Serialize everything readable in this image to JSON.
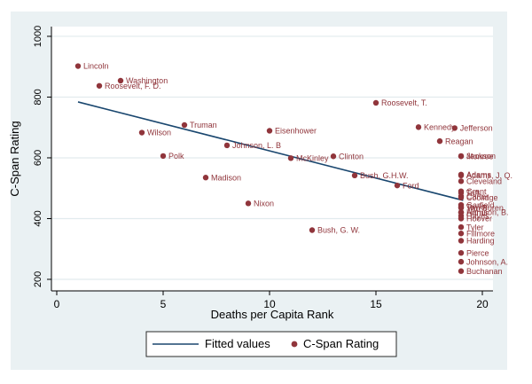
{
  "chart_data": {
    "type": "scatter",
    "title": "",
    "xlabel": "Deaths per Capita Rank",
    "ylabel": "C-Span Rating",
    "x_ticks": [
      0,
      5,
      10,
      15,
      20
    ],
    "y_ticks": [
      200,
      400,
      600,
      800,
      1000
    ],
    "xlim": [
      -0.25,
      20.5
    ],
    "ylim": [
      162,
      1032
    ],
    "grid": "horizontal-only",
    "legend": {
      "position": "bottom-center",
      "fitted_label": "Fitted values",
      "rating_label": "C-Span Rating"
    },
    "fitted_line": {
      "x1": 1.0,
      "y1": 784,
      "x2": 19.1,
      "y2": 460
    },
    "points": [
      {
        "label": "Lincoln",
        "x": 1,
        "y": 902
      },
      {
        "label": "Roosevelt, F. D.",
        "x": 2,
        "y": 837
      },
      {
        "label": "Washington",
        "x": 3,
        "y": 854
      },
      {
        "label": "Wilson",
        "x": 4,
        "y": 683
      },
      {
        "label": "Polk",
        "x": 5,
        "y": 606
      },
      {
        "label": "Truman",
        "x": 6,
        "y": 708
      },
      {
        "label": "Madison",
        "x": 7,
        "y": 535
      },
      {
        "label": "Johnson, L. B",
        "x": 8,
        "y": 641
      },
      {
        "label": "Nixon",
        "x": 9,
        "y": 450
      },
      {
        "label": "Eisenhower",
        "x": 10,
        "y": 689
      },
      {
        "label": "McKinley",
        "x": 11,
        "y": 599
      },
      {
        "label": "Bush, G. W.",
        "x": 12,
        "y": 362
      },
      {
        "label": "Clinton",
        "x": 13,
        "y": 605
      },
      {
        "label": "Bush, G.H.W.",
        "x": 14,
        "y": 542
      },
      {
        "label": "Roosevelt, T.",
        "x": 15,
        "y": 781
      },
      {
        "label": "Ford",
        "x": 16,
        "y": 509
      },
      {
        "label": "Kennedy",
        "x": 17,
        "y": 701
      },
      {
        "label": "Reagan",
        "x": 18,
        "y": 655
      },
      {
        "label": "Jefferson",
        "x": 18.7,
        "y": 698
      },
      {
        "label": "Jackson",
        "x": 19,
        "y": 606
      },
      {
        "label": "Monroe",
        "x": 19,
        "y": 605
      },
      {
        "label": "Adams",
        "x": 19,
        "y": 545
      },
      {
        "label": "Adams, J. Q.",
        "x": 19,
        "y": 542
      },
      {
        "label": "Cleveland",
        "x": 19,
        "y": 523
      },
      {
        "label": "Grant",
        "x": 19,
        "y": 490
      },
      {
        "label": "Taft",
        "x": 19,
        "y": 485
      },
      {
        "label": "Carter",
        "x": 19,
        "y": 474
      },
      {
        "label": "Coolidge",
        "x": 19,
        "y": 469
      },
      {
        "label": "Garfield",
        "x": 19,
        "y": 445
      },
      {
        "label": "Taylor",
        "x": 19,
        "y": 438
      },
      {
        "label": "Van Buren",
        "x": 19,
        "y": 435
      },
      {
        "label": "Harrison, B.",
        "x": 19,
        "y": 421
      },
      {
        "label": "Arthur",
        "x": 19,
        "y": 420
      },
      {
        "label": "Hayes",
        "x": 19,
        "y": 409
      },
      {
        "label": "Hoover",
        "x": 19,
        "y": 400
      },
      {
        "label": "Tyler",
        "x": 19,
        "y": 372
      },
      {
        "label": "Fillmore",
        "x": 19,
        "y": 351
      },
      {
        "label": "Harding",
        "x": 19,
        "y": 327
      },
      {
        "label": "Pierce",
        "x": 19,
        "y": 287
      },
      {
        "label": "Johnson, A.",
        "x": 19,
        "y": 258
      },
      {
        "label": "Buchanan",
        "x": 19,
        "y": 227
      }
    ]
  },
  "colors": {
    "figure_background": "#eaf1f3",
    "plot_background": "#ffffff",
    "gridline": "#e2ebee",
    "axis": "#000000",
    "text": "#000000",
    "marker": "#90353b",
    "marker_label": "#90353b",
    "fitted_line": "#1a476f",
    "legend_border": "#2a2a2a"
  }
}
